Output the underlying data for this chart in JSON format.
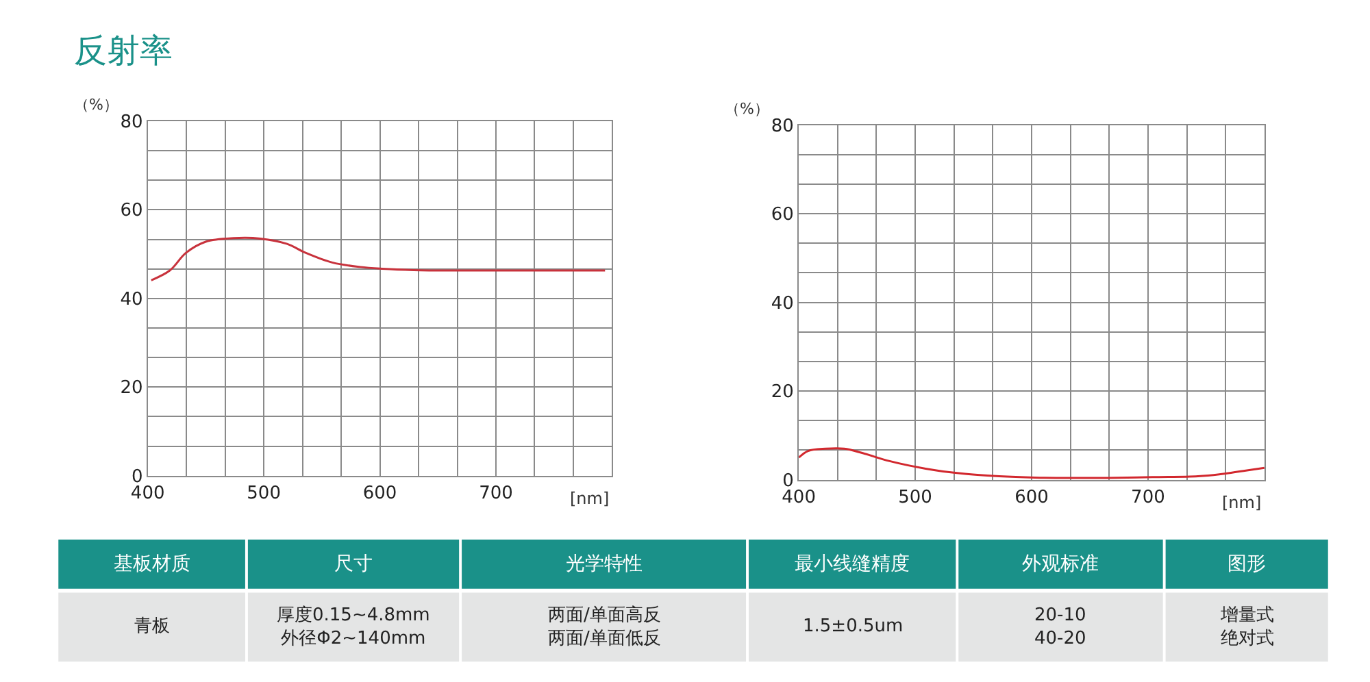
{
  "chart_data": [
    {
      "type": "line",
      "title": "反射率",
      "xlabel": "[nm]",
      "ylabel": "（%）",
      "xlim": [
        400,
        800
      ],
      "ylim": [
        0,
        80
      ],
      "xticks": [
        400,
        {
          "value": 433.33,
          "label": null
        },
        {
          "value": 466.67,
          "label": null
        },
        500,
        {
          "value": 533.33,
          "label": null
        },
        {
          "value": 566.67,
          "label": null
        },
        600,
        {
          "value": 633.33,
          "label": null
        },
        {
          "value": 666.67,
          "label": null
        },
        700,
        {
          "value": 733.33,
          "label": null
        },
        {
          "value": 766.67,
          "label": null
        },
        {
          "value": 800,
          "label": null
        }
      ],
      "yticks": [
        0,
        {
          "value": 6.67,
          "label": null
        },
        {
          "value": 13.33,
          "label": null
        },
        20,
        {
          "value": 26.67,
          "label": null
        },
        {
          "value": 33.33,
          "label": null
        },
        40,
        {
          "value": 46.67,
          "label": null
        },
        {
          "value": 53.33,
          "label": null
        },
        60,
        {
          "value": 66.67,
          "label": null
        },
        {
          "value": 73.33,
          "label": null
        },
        80
      ],
      "grid": true,
      "line_style": "solid",
      "marker": "none",
      "series": [
        {
          "color": "#c8323c",
          "x": [
            403,
            419,
            433,
            450,
            474,
            497,
            520,
            536,
            559,
            583,
            602,
            629,
            668,
            746,
            794
          ],
          "values": [
            44.1,
            46.3,
            50.3,
            52.8,
            53.6,
            53.5,
            52.3,
            50.3,
            48.1,
            47.1,
            46.7,
            46.4,
            46.3,
            46.3,
            46.3
          ]
        }
      ]
    },
    {
      "type": "line",
      "xlabel": "[nm]",
      "ylabel": "（%）",
      "xlim": [
        400,
        800
      ],
      "ylim": [
        0,
        80
      ],
      "xticks": [
        400,
        {
          "value": 433.33,
          "label": null
        },
        {
          "value": 466.67,
          "label": null
        },
        500,
        {
          "value": 533.33,
          "label": null
        },
        {
          "value": 566.67,
          "label": null
        },
        600,
        {
          "value": 633.33,
          "label": null
        },
        {
          "value": 666.67,
          "label": null
        },
        700,
        {
          "value": 733.33,
          "label": null
        },
        {
          "value": 766.67,
          "label": null
        },
        {
          "value": 800,
          "label": null
        }
      ],
      "yticks": [
        0,
        {
          "value": 6.67,
          "label": null
        },
        {
          "value": 13.33,
          "label": null
        },
        20,
        {
          "value": 26.67,
          "label": null
        },
        {
          "value": 33.33,
          "label": null
        },
        40,
        {
          "value": 46.67,
          "label": null
        },
        {
          "value": 53.33,
          "label": null
        },
        60,
        {
          "value": 66.67,
          "label": null
        },
        {
          "value": 73.33,
          "label": null
        },
        80
      ],
      "grid": true,
      "line_style": "solid",
      "marker": "none",
      "series": [
        {
          "color": "#d2282e",
          "x": [
            400,
            408,
            423,
            439,
            455,
            478,
            509,
            540,
            572,
            603,
            634,
            665,
            704,
            743,
            767,
            782,
            800
          ],
          "values": [
            5.0,
            6.5,
            7.0,
            7.0,
            6.0,
            4.2,
            2.5,
            1.4,
            0.8,
            0.5,
            0.4,
            0.4,
            0.6,
            0.8,
            1.4,
            2.0,
            2.7
          ]
        }
      ]
    },
    {
      "type": "other",
      "annotations": [
        "基板材质",
        "尺寸",
        "光学特性",
        "最小线缝精度",
        "外观标准",
        "图形",
        "青板",
        "厚度0.15~4.8mm",
        "外径Φ2~140mm",
        "两面/单面高反",
        "两面/单面低反",
        "1.5±0.5um",
        "20-10",
        "40-20",
        "增量式",
        "绝对式"
      ]
    }
  ]
}
